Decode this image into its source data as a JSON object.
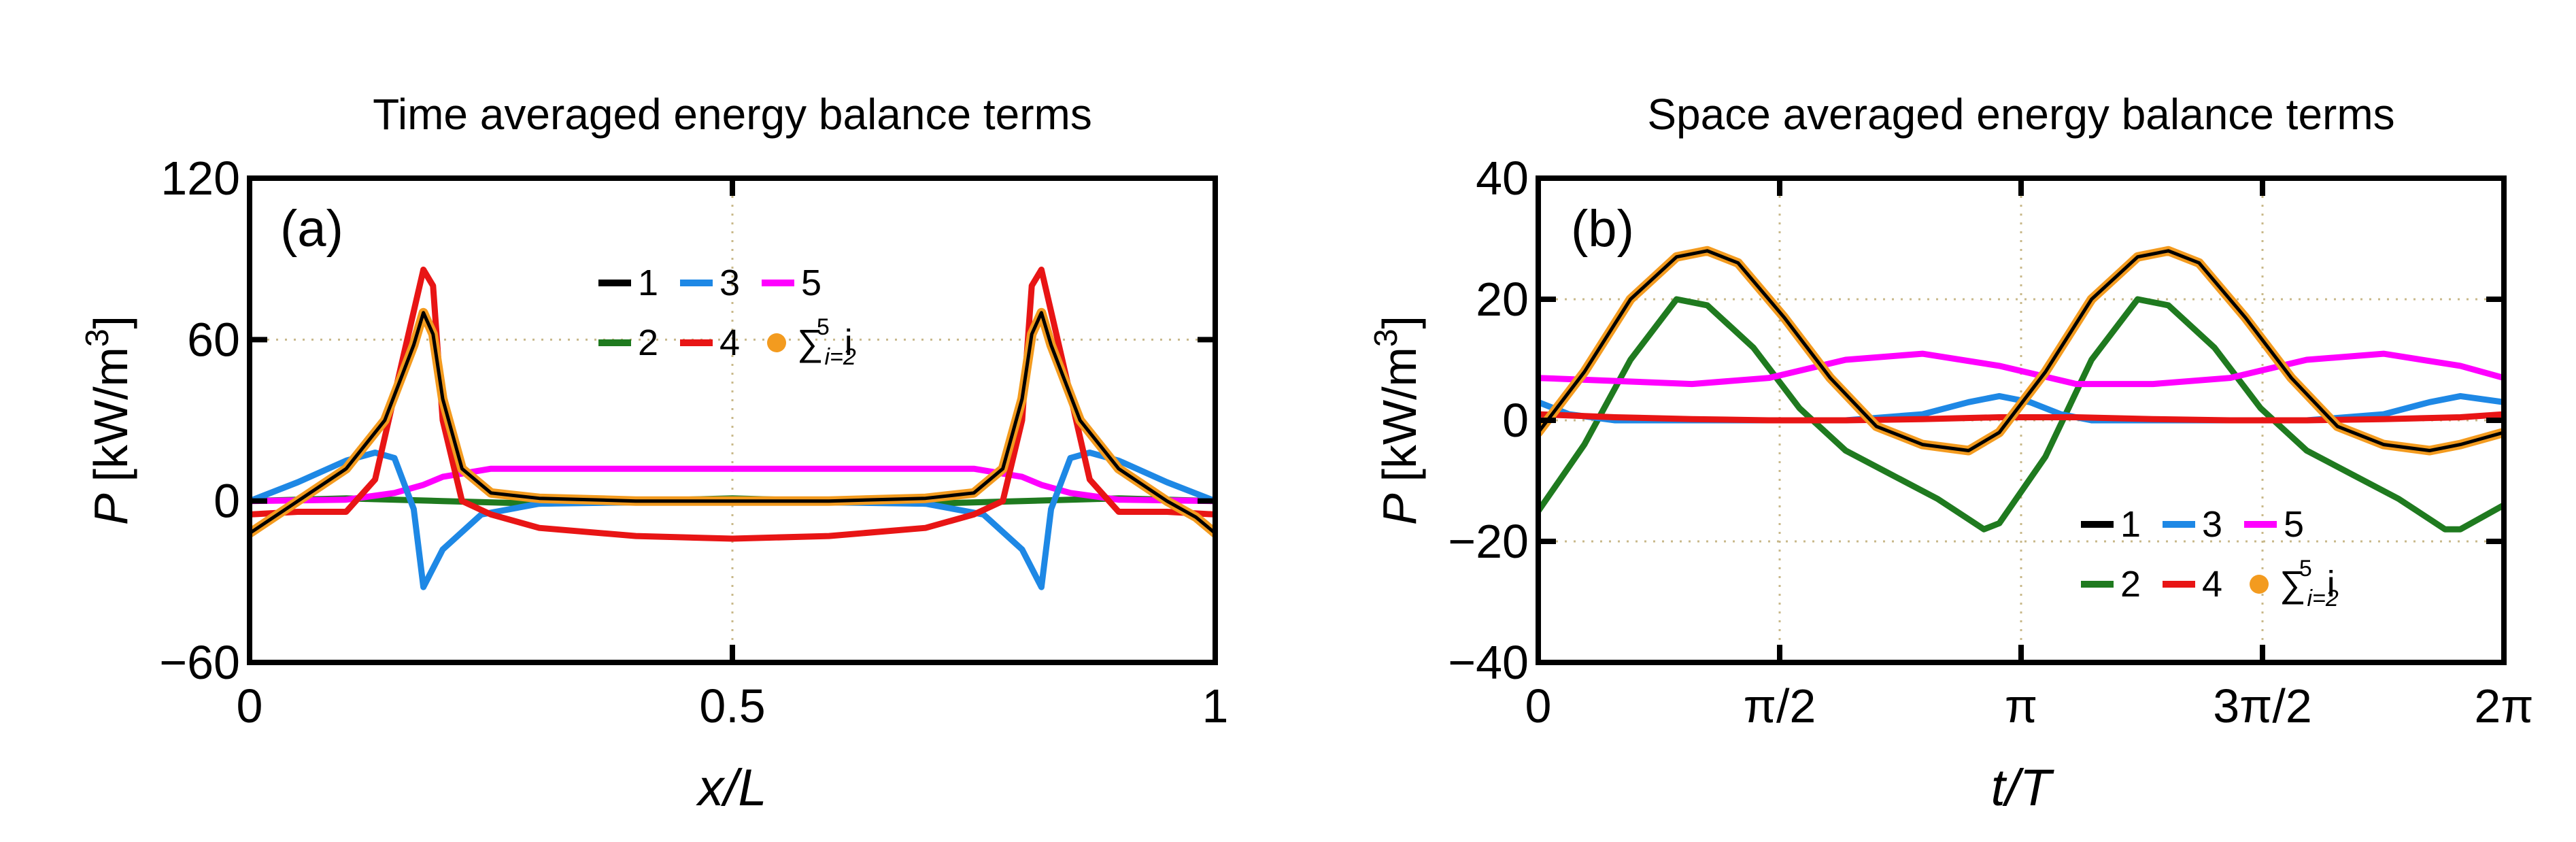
{
  "chart_data": [
    {
      "type": "line",
      "panel_label": "(a)",
      "title": "Time averaged energy balance terms",
      "xlabel": "x/L",
      "ylabel_var": "P",
      "ylabel_unit": "[kW/m",
      "ylabel_exp": "3",
      "ylabel_close": "]",
      "xlim": [
        0,
        1
      ],
      "ylim": [
        -60,
        120
      ],
      "xticks": [
        0,
        0.5,
        1
      ],
      "xtick_labels": [
        "0",
        "0.5",
        "1"
      ],
      "yticks": [
        -60,
        0,
        60,
        120
      ],
      "ytick_labels": [
        "−60",
        "0",
        "60",
        "120"
      ],
      "grid": true,
      "legend": {
        "position": "top-center",
        "entries": [
          {
            "label": "1",
            "color": "#000000",
            "kind": "line"
          },
          {
            "label": "3",
            "color": "#1e88e5",
            "kind": "line"
          },
          {
            "label": "5",
            "color": "#ff00ff",
            "kind": "line"
          },
          {
            "label": "2",
            "color": "#1f7a1f",
            "kind": "line"
          },
          {
            "label": "4",
            "color": "#e81515",
            "kind": "line"
          },
          {
            "label": "∑",
            "sub": "i=2",
            "sup": "5",
            "suffix": "i",
            "color": "#f39b1f",
            "kind": "marker"
          }
        ]
      },
      "series": [
        {
          "name": "1",
          "color": "#000000",
          "x": [
            0,
            0.05,
            0.1,
            0.14,
            0.17,
            0.18,
            0.19,
            0.2,
            0.22,
            0.25,
            0.3,
            0.4,
            0.5,
            0.6,
            0.7,
            0.75,
            0.78,
            0.8,
            0.81,
            0.82,
            0.83,
            0.86,
            0.9,
            0.95,
            0.98,
            1
          ],
          "y": [
            -12,
            0,
            12,
            30,
            58,
            70,
            62,
            38,
            12,
            3,
            1,
            0,
            0,
            0,
            1,
            3,
            12,
            38,
            62,
            70,
            58,
            30,
            12,
            0,
            -6,
            -12
          ]
        },
        {
          "name": "2",
          "color": "#1f7a1f",
          "x": [
            0,
            0.1,
            0.2,
            0.3,
            0.4,
            0.5,
            0.6,
            0.7,
            0.8,
            0.9,
            1
          ],
          "y": [
            0,
            1,
            0,
            -1,
            0,
            1,
            0,
            -1,
            0,
            1,
            0
          ]
        },
        {
          "name": "3",
          "color": "#1e88e5",
          "x": [
            0,
            0.05,
            0.1,
            0.13,
            0.15,
            0.17,
            0.18,
            0.2,
            0.24,
            0.3,
            0.5,
            0.7,
            0.76,
            0.8,
            0.82,
            0.83,
            0.85,
            0.87,
            0.9,
            0.95,
            1
          ],
          "y": [
            0,
            7,
            15,
            18,
            16,
            -3,
            -32,
            -18,
            -5,
            -1,
            0,
            -1,
            -5,
            -18,
            -32,
            -3,
            16,
            18,
            15,
            7,
            0
          ]
        },
        {
          "name": "4",
          "color": "#e81515",
          "x": [
            0,
            0.05,
            0.1,
            0.13,
            0.16,
            0.18,
            0.19,
            0.2,
            0.22,
            0.25,
            0.3,
            0.4,
            0.5,
            0.6,
            0.7,
            0.75,
            0.78,
            0.8,
            0.81,
            0.82,
            0.84,
            0.87,
            0.9,
            0.95,
            1
          ],
          "y": [
            -5,
            -4,
            -4,
            8,
            55,
            86,
            80,
            30,
            0,
            -5,
            -10,
            -13,
            -14,
            -13,
            -10,
            -5,
            0,
            30,
            80,
            86,
            55,
            8,
            -4,
            -4,
            -5
          ]
        },
        {
          "name": "5",
          "color": "#ff00ff",
          "x": [
            0,
            0.1,
            0.15,
            0.18,
            0.2,
            0.25,
            0.5,
            0.75,
            0.8,
            0.82,
            0.85,
            0.9,
            1
          ],
          "y": [
            0,
            0.5,
            3,
            6,
            9,
            12,
            12,
            12,
            9,
            6,
            3,
            0.5,
            0
          ]
        },
        {
          "name": "∑i=2..5 i",
          "color": "#f39b1f",
          "kind": "marker",
          "x": [
            0,
            0.05,
            0.1,
            0.14,
            0.17,
            0.18,
            0.19,
            0.2,
            0.22,
            0.25,
            0.3,
            0.4,
            0.5,
            0.6,
            0.7,
            0.75,
            0.78,
            0.8,
            0.81,
            0.82,
            0.83,
            0.86,
            0.9,
            0.95,
            0.98,
            1
          ],
          "y": [
            -12,
            0,
            12,
            30,
            58,
            70,
            62,
            38,
            12,
            3,
            1,
            0,
            0,
            0,
            1,
            3,
            12,
            38,
            62,
            70,
            58,
            30,
            12,
            0,
            -6,
            -12
          ]
        }
      ]
    },
    {
      "type": "line",
      "panel_label": "(b)",
      "title": "Space averaged energy balance terms",
      "xlabel": "t/T",
      "ylabel_var": "P",
      "ylabel_unit": "[kW/m",
      "ylabel_exp": "3",
      "ylabel_close": "]",
      "xlim": [
        0,
        6.2832
      ],
      "ylim": [
        -40,
        40
      ],
      "xticks": [
        0,
        1.5708,
        3.1416,
        4.7124,
        6.2832
      ],
      "xtick_labels": [
        "0",
        "π/2",
        "π",
        "3π/2",
        "2π"
      ],
      "yticks": [
        -40,
        -20,
        0,
        20,
        40
      ],
      "ytick_labels": [
        "−40",
        "−20",
        "0",
        "20",
        "40"
      ],
      "grid": true,
      "legend": {
        "position": "bottom-right",
        "entries": [
          {
            "label": "1",
            "color": "#000000",
            "kind": "line"
          },
          {
            "label": "3",
            "color": "#1e88e5",
            "kind": "line"
          },
          {
            "label": "5",
            "color": "#ff00ff",
            "kind": "line"
          },
          {
            "label": "2",
            "color": "#1f7a1f",
            "kind": "line"
          },
          {
            "label": "4",
            "color": "#e81515",
            "kind": "line"
          },
          {
            "label": "∑",
            "sub": "i=2",
            "sup": "5",
            "suffix": "i",
            "color": "#f39b1f",
            "kind": "marker"
          }
        ]
      },
      "series": [
        {
          "name": "1",
          "color": "#000000",
          "x": [
            0,
            0.3,
            0.6,
            0.9,
            1.1,
            1.3,
            1.6,
            1.9,
            2.2,
            2.5,
            2.8,
            3.0,
            3.3,
            3.6,
            3.9,
            4.1,
            4.3,
            4.6,
            4.9,
            5.2,
            5.5,
            5.8,
            6.0,
            6.2832
          ],
          "y": [
            -2,
            8,
            20,
            27,
            28,
            26,
            17,
            7,
            -1,
            -4,
            -5,
            -2,
            8,
            20,
            27,
            28,
            26,
            17,
            7,
            -1,
            -4,
            -5,
            -4,
            -2
          ]
        },
        {
          "name": "2",
          "color": "#1f7a1f",
          "x": [
            0,
            0.3,
            0.6,
            0.9,
            1.1,
            1.4,
            1.7,
            2.0,
            2.3,
            2.6,
            2.9,
            3.0,
            3.3,
            3.6,
            3.9,
            4.1,
            4.4,
            4.7,
            5.0,
            5.3,
            5.6,
            5.9,
            6.0,
            6.2832
          ],
          "y": [
            -15,
            -4,
            10,
            20,
            19,
            12,
            2,
            -5,
            -9,
            -13,
            -18,
            -17,
            -6,
            10,
            20,
            19,
            12,
            2,
            -5,
            -9,
            -13,
            -18,
            -18,
            -14
          ]
        },
        {
          "name": "3",
          "color": "#1e88e5",
          "x": [
            0,
            0.2,
            0.5,
            1.0,
            1.5,
            2.0,
            2.5,
            2.8,
            3.0,
            3.2,
            3.4,
            3.6,
            4.0,
            4.5,
            5.0,
            5.5,
            5.8,
            6.0,
            6.2832
          ],
          "y": [
            3,
            1,
            0,
            0,
            0,
            0,
            1,
            3,
            4,
            3,
            1,
            0,
            0,
            0,
            0,
            1,
            3,
            4,
            3
          ]
        },
        {
          "name": "4",
          "color": "#e81515",
          "x": [
            0,
            0.5,
            1.0,
            1.5,
            2.0,
            2.5,
            3.0,
            3.5,
            4.0,
            4.5,
            5.0,
            5.5,
            6.0,
            6.2832
          ],
          "y": [
            1,
            0.5,
            0.2,
            0,
            0,
            0.2,
            0.5,
            0.5,
            0.2,
            0,
            0,
            0.2,
            0.5,
            1
          ]
        },
        {
          "name": "5",
          "color": "#ff00ff",
          "x": [
            0,
            0.5,
            1.0,
            1.5,
            2.0,
            2.5,
            3.0,
            3.5,
            4.0,
            4.5,
            5.0,
            5.5,
            6.0,
            6.2832
          ],
          "y": [
            7,
            6.5,
            6,
            7,
            10,
            11,
            9,
            6,
            6,
            7,
            10,
            11,
            9,
            7
          ]
        },
        {
          "name": "∑i=2..5 i",
          "color": "#f39b1f",
          "kind": "marker",
          "x": [
            0,
            0.3,
            0.6,
            0.9,
            1.1,
            1.3,
            1.6,
            1.9,
            2.2,
            2.5,
            2.8,
            3.0,
            3.3,
            3.6,
            3.9,
            4.1,
            4.3,
            4.6,
            4.9,
            5.2,
            5.5,
            5.8,
            6.0,
            6.2832
          ],
          "y": [
            -2,
            8,
            20,
            27,
            28,
            26,
            17,
            7,
            -1,
            -4,
            -5,
            -2,
            8,
            20,
            27,
            28,
            26,
            17,
            7,
            -1,
            -4,
            -5,
            -4,
            -2
          ]
        }
      ]
    }
  ]
}
